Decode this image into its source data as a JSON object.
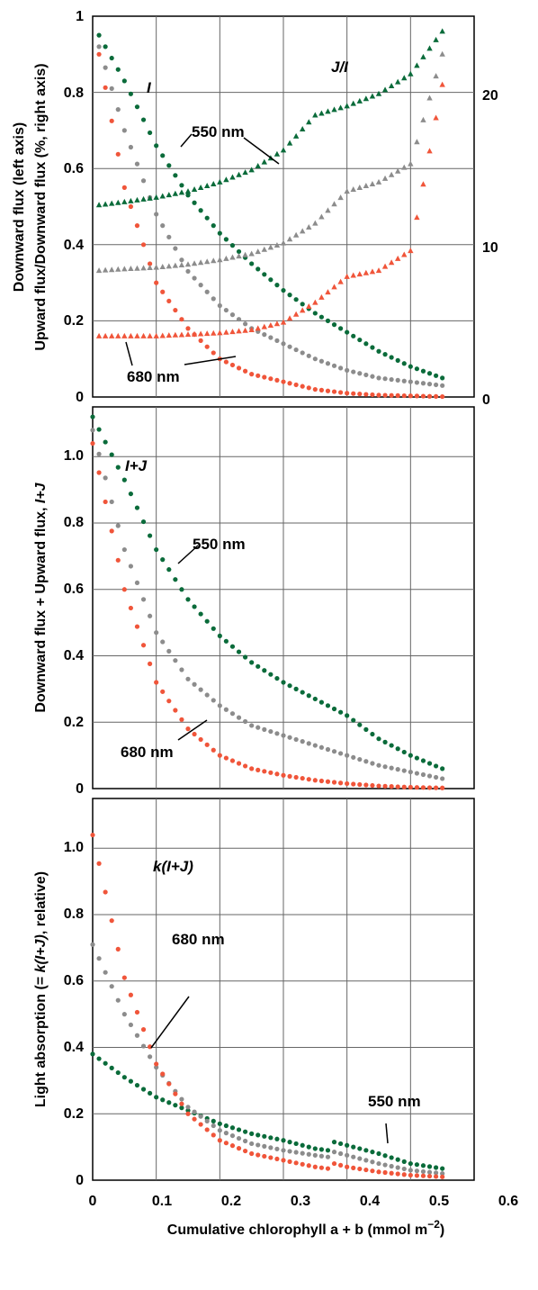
{
  "colors": {
    "green": "#0a6b3a",
    "gray": "#8c8c8c",
    "red": "#f0553a",
    "grid": "#666666",
    "axis": "#000000"
  },
  "xaxis": {
    "label_main": "Cumulative chlorophyll a + b (mmol m",
    "label_sup": "−2",
    "label_end": ")",
    "ticks": [
      "0",
      "0.1",
      "0.2",
      "0.3",
      "0.4",
      "0.5",
      "0.6"
    ]
  },
  "panels": [
    {
      "ylabel_line1": "Downward flux (left axis)",
      "ylabel_line2": "Upward flux/Downward flux (%, right axis)",
      "left_ticks": [
        "0",
        "0.2",
        "0.4",
        "0.6",
        "0.8",
        "1"
      ],
      "right_ticks": [
        "0",
        "10",
        "20"
      ],
      "notes": [
        {
          "text": "I",
          "italic": true
        },
        {
          "text": "J/I",
          "italic": true
        },
        {
          "text": "550 nm",
          "italic": false
        },
        {
          "text": "680 nm",
          "italic": false
        }
      ]
    },
    {
      "ylabel_prefix": "Downward flux + Upward flux, ",
      "ylabel_italic": "I+J",
      "left_ticks": [
        "0",
        "0.2",
        "0.4",
        "0.6",
        "0.8",
        "1.0"
      ],
      "notes": [
        {
          "text": "I+J",
          "italic": true
        },
        {
          "text": "550 nm",
          "italic": false
        },
        {
          "text": "680 nm",
          "italic": false
        }
      ]
    },
    {
      "ylabel_prefix": "Light absorption (= ",
      "ylabel_italic": "k(I+J)",
      "ylabel_suffix": ", relative)",
      "left_ticks": [
        "0",
        "0.2",
        "0.4",
        "0.6",
        "0.8",
        "1.0"
      ],
      "notes": [
        {
          "text": "k(I+J)",
          "italic": true
        },
        {
          "text": "680 nm",
          "italic": false
        },
        {
          "text": "550 nm",
          "italic": false
        }
      ]
    }
  ],
  "chart_data": [
    {
      "type": "scatter",
      "xlim": [
        0,
        0.6
      ],
      "ylim": [
        0,
        1
      ],
      "y2lim": [
        0,
        25
      ],
      "grid": true,
      "x": [
        0.01,
        0.05,
        0.1,
        0.15,
        0.2,
        0.25,
        0.3,
        0.35,
        0.4,
        0.45,
        0.5,
        0.55
      ],
      "series": [
        {
          "name": "550 nm",
          "axis": "left",
          "color": "green",
          "marker": "circle",
          "values": [
            0.95,
            0.83,
            0.66,
            0.53,
            0.43,
            0.35,
            0.28,
            0.22,
            0.17,
            0.12,
            0.08,
            0.05
          ]
        },
        {
          "axis": "left",
          "color": "gray",
          "marker": "circle",
          "values": [
            0.92,
            0.7,
            0.48,
            0.33,
            0.24,
            0.18,
            0.14,
            0.1,
            0.07,
            0.05,
            0.04,
            0.03
          ]
        },
        {
          "name": "680 nm",
          "axis": "left",
          "color": "red",
          "marker": "circle",
          "values": [
            0.9,
            0.55,
            0.3,
            0.18,
            0.1,
            0.06,
            0.04,
            0.02,
            0.01,
            0.005,
            0.003,
            0.001
          ]
        },
        {
          "name": "550 nm",
          "axis": "right",
          "color": "green",
          "marker": "triangle",
          "values": [
            12.6,
            12.8,
            13.1,
            13.5,
            14.1,
            14.9,
            16.2,
            18.5,
            19.1,
            19.9,
            21.2,
            24
          ]
        },
        {
          "axis": "right",
          "color": "gray",
          "marker": "triangle",
          "values": [
            8.3,
            8.4,
            8.5,
            8.7,
            9,
            9.4,
            10.1,
            11.4,
            13.5,
            14.1,
            15.3,
            22.5
          ]
        },
        {
          "name": "680 nm",
          "axis": "right",
          "color": "red",
          "marker": "triangle",
          "values": [
            4,
            4,
            4,
            4.1,
            4.2,
            4.4,
            4.9,
            6.2,
            7.9,
            8.3,
            9.6,
            20.5
          ]
        }
      ]
    },
    {
      "type": "scatter",
      "xlim": [
        0,
        0.6
      ],
      "ylim": [
        0,
        1.15
      ],
      "grid": true,
      "x": [
        0,
        0.05,
        0.1,
        0.15,
        0.2,
        0.25,
        0.3,
        0.35,
        0.4,
        0.45,
        0.5,
        0.55
      ],
      "series": [
        {
          "name": "550 nm",
          "color": "green",
          "values": [
            1.12,
            0.93,
            0.72,
            0.57,
            0.46,
            0.38,
            0.32,
            0.27,
            0.22,
            0.15,
            0.1,
            0.06
          ]
        },
        {
          "color": "gray",
          "values": [
            1.08,
            0.72,
            0.47,
            0.33,
            0.25,
            0.19,
            0.16,
            0.13,
            0.1,
            0.07,
            0.05,
            0.03
          ]
        },
        {
          "name": "680 nm",
          "color": "red",
          "values": [
            1.04,
            0.6,
            0.32,
            0.18,
            0.1,
            0.06,
            0.04,
            0.025,
            0.015,
            0.008,
            0.004,
            0.002
          ]
        }
      ]
    },
    {
      "type": "scatter",
      "xlim": [
        0,
        0.6
      ],
      "ylim": [
        0,
        1.15
      ],
      "grid": true,
      "x": [
        0,
        0.05,
        0.1,
        0.15,
        0.2,
        0.25,
        0.3,
        0.35,
        0.37,
        0.38,
        0.4,
        0.45,
        0.5,
        0.55
      ],
      "series": [
        {
          "name": "550 nm",
          "color": "green",
          "values": [
            0.38,
            0.31,
            0.25,
            0.21,
            0.17,
            0.14,
            0.12,
            0.095,
            0.09,
            0.115,
            0.105,
            0.08,
            0.05,
            0.035
          ]
        },
        {
          "color": "gray",
          "values": [
            0.71,
            0.5,
            0.34,
            0.22,
            0.15,
            0.11,
            0.09,
            0.075,
            0.07,
            0.085,
            0.075,
            0.05,
            0.03,
            0.02
          ]
        },
        {
          "name": "680 nm",
          "color": "red",
          "values": [
            1.04,
            0.61,
            0.35,
            0.2,
            0.12,
            0.08,
            0.06,
            0.04,
            0.035,
            0.05,
            0.04,
            0.025,
            0.015,
            0.01
          ]
        }
      ]
    }
  ]
}
